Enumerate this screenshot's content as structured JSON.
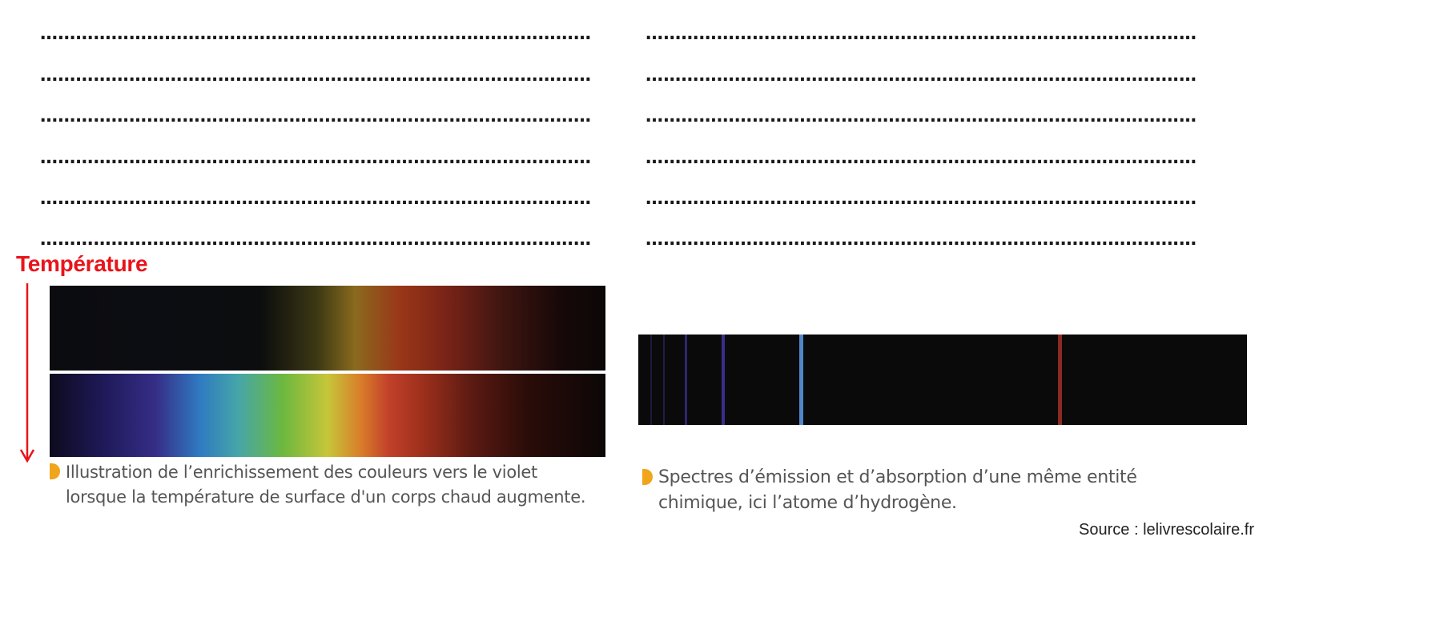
{
  "answer_lines": {
    "left": [
      "……………………………………………………………………………………………………………",
      "……………………………………………………………………………………………………………",
      "……………………………………………………………………………………………………………",
      "……………………………………………………………………………………………………………",
      "……………………………………………………………………………………………………………",
      "……………………………………………………………………………………………………………"
    ],
    "right": [
      "……………………………………………………………………………………………………………",
      "……………………………………………………………………………………………………………",
      "……………………………………………………………………………………………………………",
      "……………………………………………………………………………………………………………",
      "……………………………………………………………………………………………………………",
      "……………………………………………………………………………………………………………"
    ]
  },
  "temperature_label": "Température",
  "colors": {
    "temperature_red": "#e8141a",
    "caption_bullet": "#f0a51d",
    "caption_text": "#555555",
    "spectrum_background": "#0a0a0a"
  },
  "left_figure": {
    "caption_line1": "Illustration de l’enrichissement des couleurs vers le violet",
    "caption_line2": "lorsque la température de surface d'un corps chaud augmente."
  },
  "right_figure": {
    "caption_line1": "Spectres d’émission et d’absorption d’une même entité",
    "caption_line2": "chimique, ici l’atome d’hydrogène.",
    "emission_lines": [
      {
        "position": 0.02,
        "color": "#1c1a3c",
        "width": 2
      },
      {
        "position": 0.041,
        "color": "#221e4a",
        "width": 2
      },
      {
        "position": 0.076,
        "color": "#2e2670",
        "width": 3
      },
      {
        "position": 0.137,
        "color": "#3a2e8c",
        "width": 4
      },
      {
        "position": 0.264,
        "color": "#4f86c8",
        "width": 5
      },
      {
        "position": 0.69,
        "color": "#8a2a22",
        "width": 5
      }
    ]
  },
  "source": "Source : lelivrescolaire.fr"
}
